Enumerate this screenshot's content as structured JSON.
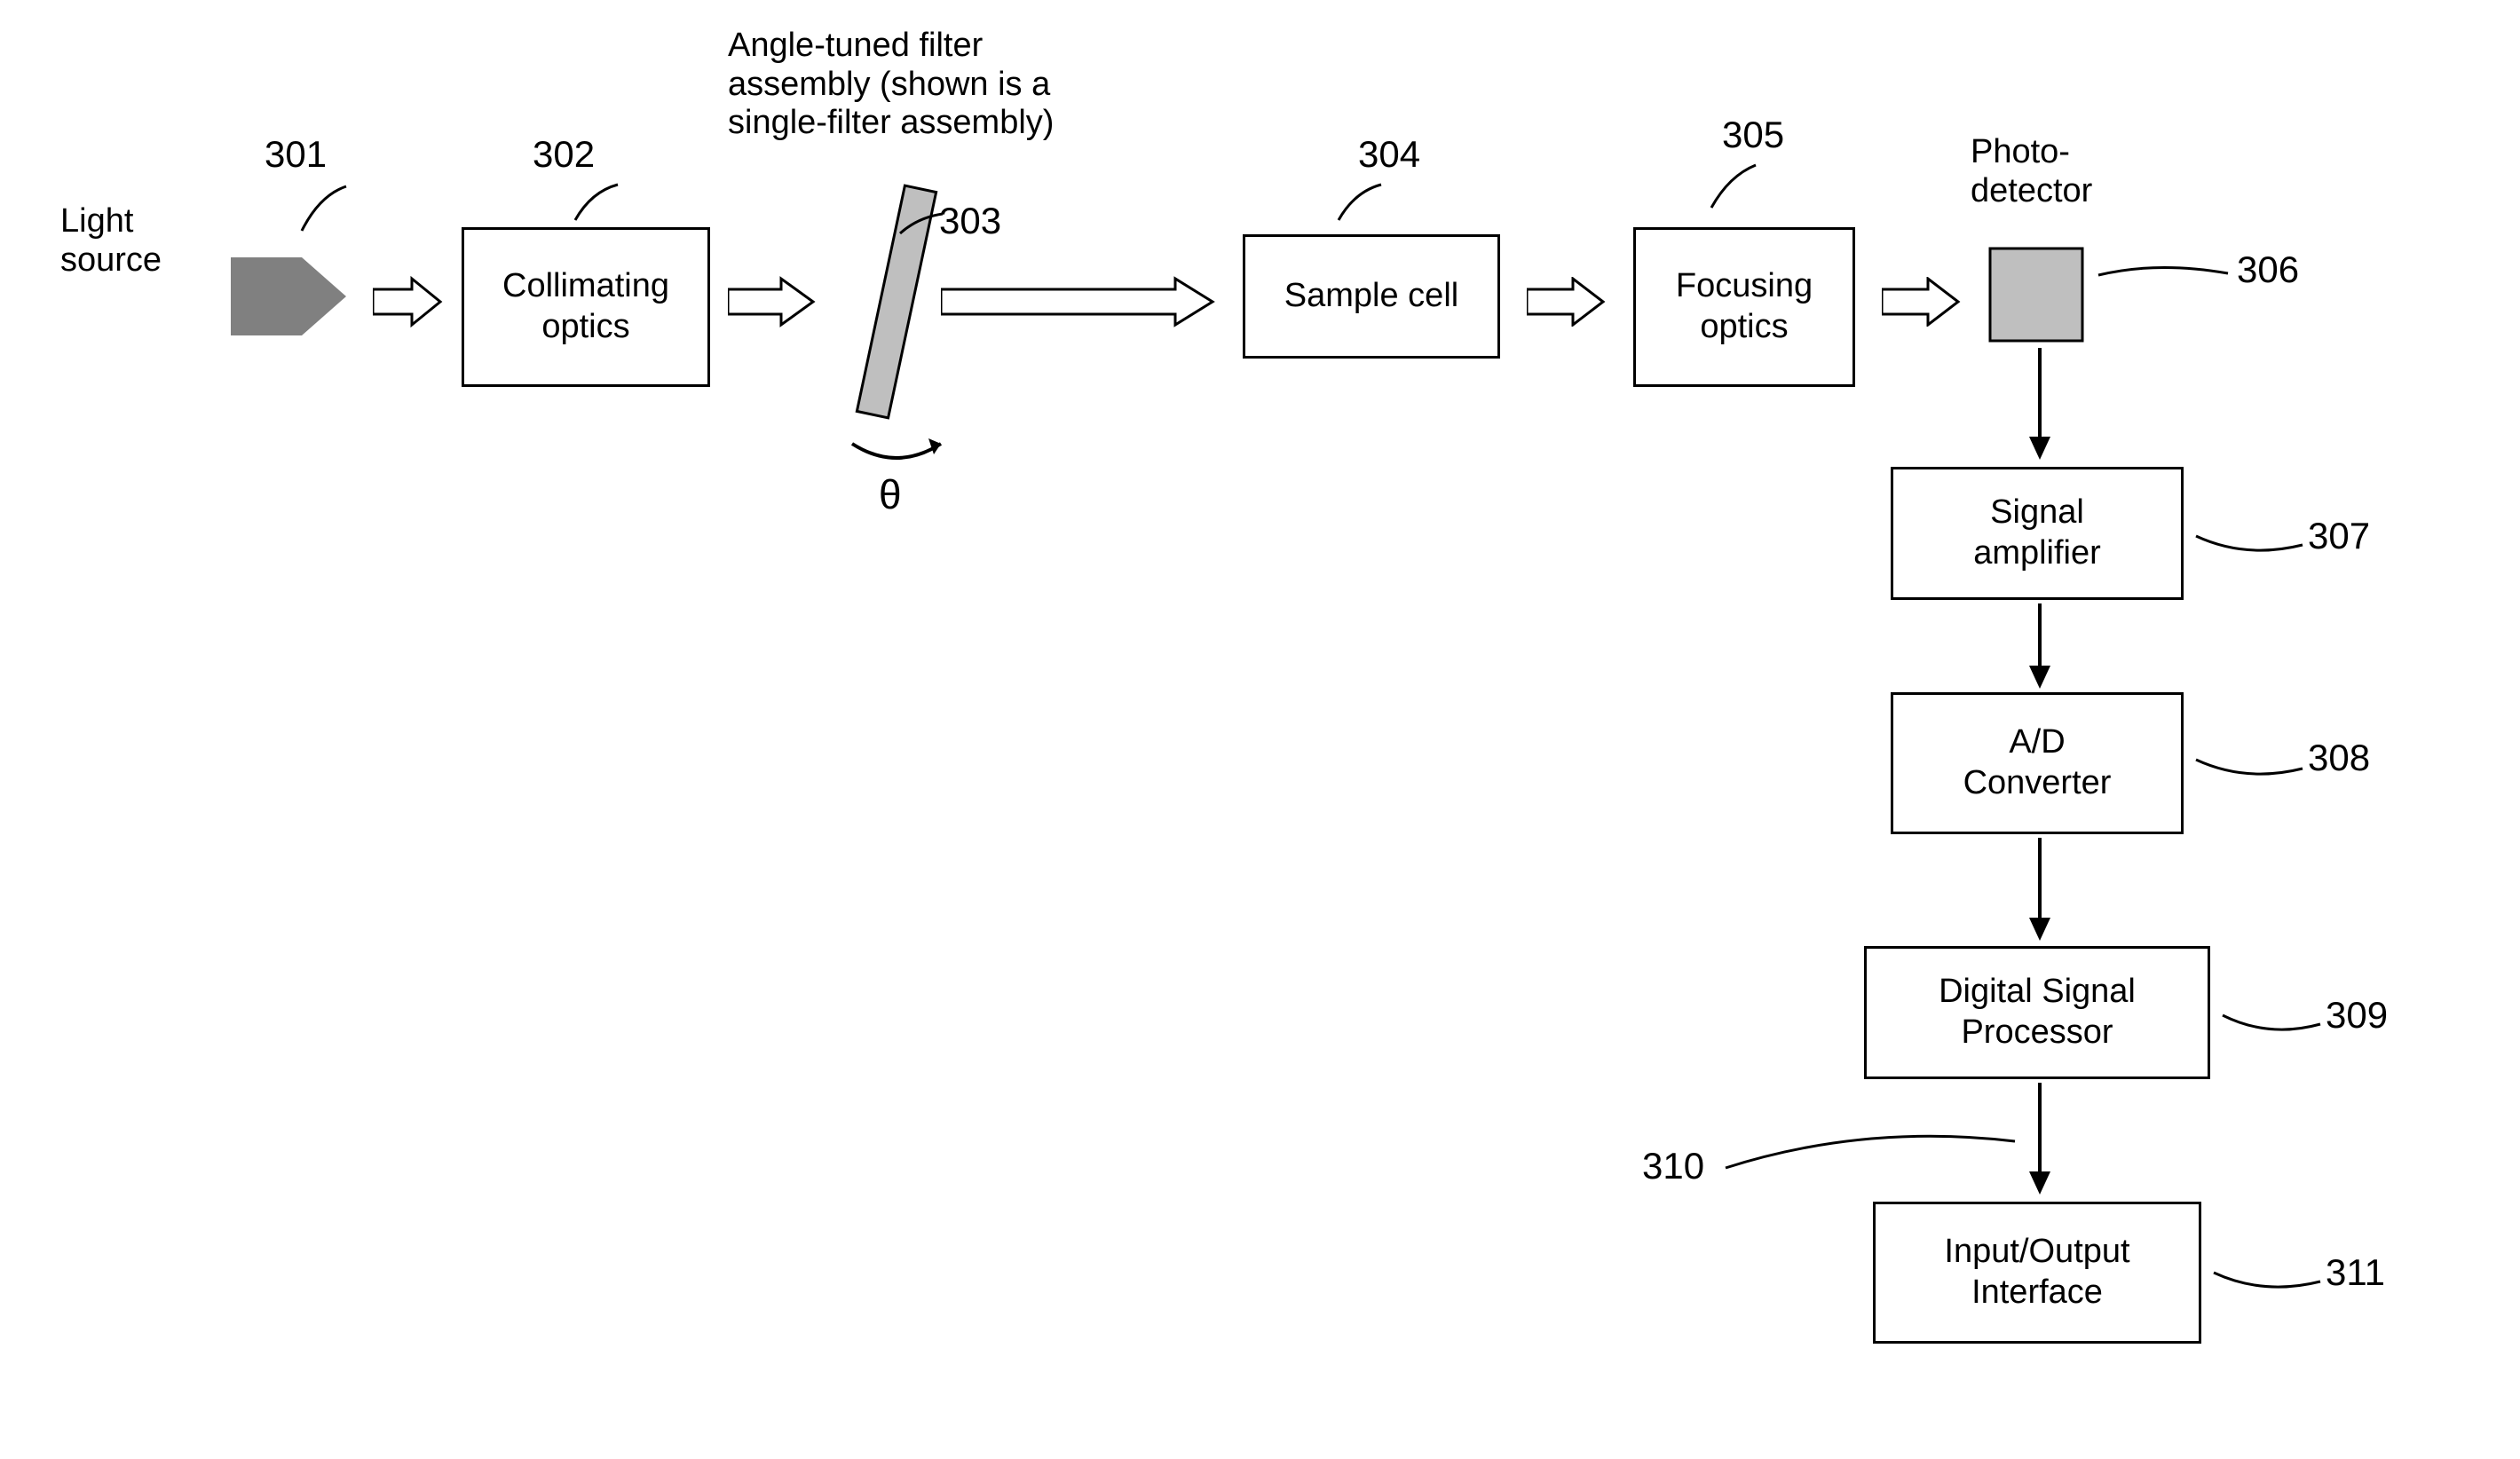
{
  "diagram": {
    "type": "flowchart",
    "background_color": "#ffffff",
    "box_border_color": "#000000",
    "box_border_width": 3,
    "font_family": "Arial",
    "label_fontsize": 38,
    "refnum_fontsize": 42,
    "light_source_label": "Light\nsource",
    "filter_annotation": "Angle-tuned filter\nassembly (shown is a\nsingle-filter assembly)",
    "photodetector_label": "Photo-\ndetector",
    "theta_symbol": "θ",
    "nodes": {
      "light_source": {
        "ref": "301",
        "type": "shape",
        "fill_body": "#808080",
        "fill_tip": "#808080"
      },
      "collimating_optics": {
        "ref": "302",
        "label": "Collimating\noptics",
        "type": "box"
      },
      "filter": {
        "ref": "303",
        "type": "tilted-rect",
        "fill": "#bfbfbf",
        "stroke": "#000000"
      },
      "sample_cell": {
        "ref": "304",
        "label": "Sample cell",
        "type": "box"
      },
      "focusing_optics": {
        "ref": "305",
        "label": "Focusing\noptics",
        "type": "box"
      },
      "photodetector": {
        "ref": "306",
        "type": "square",
        "fill": "#bfbfbf",
        "stroke": "#000000"
      },
      "signal_amplifier": {
        "ref": "307",
        "label": "Signal\namplifier",
        "type": "box"
      },
      "ad_converter": {
        "ref": "308",
        "label": "A/D\nConverter",
        "type": "box"
      },
      "dsp": {
        "ref": "309",
        "label": "Digital Signal\nProcessor",
        "type": "box"
      },
      "io_interface": {
        "ref": "311",
        "label": "Input/Output\nInterface",
        "type": "box"
      },
      "extra_ref_310": {
        "ref": "310"
      }
    },
    "edges_horizontal": [
      "light_source->collimating_optics",
      "collimating_optics->filter",
      "filter->sample_cell",
      "sample_cell->focusing_optics",
      "focusing_optics->photodetector"
    ],
    "edges_vertical": [
      "photodetector->signal_amplifier",
      "signal_amplifier->ad_converter",
      "ad_converter->dsp",
      "dsp->io_interface"
    ],
    "arrow_outline_color": "#000000",
    "arrow_fill_open": "#ffffff",
    "arrow_fill_solid": "#000000"
  }
}
